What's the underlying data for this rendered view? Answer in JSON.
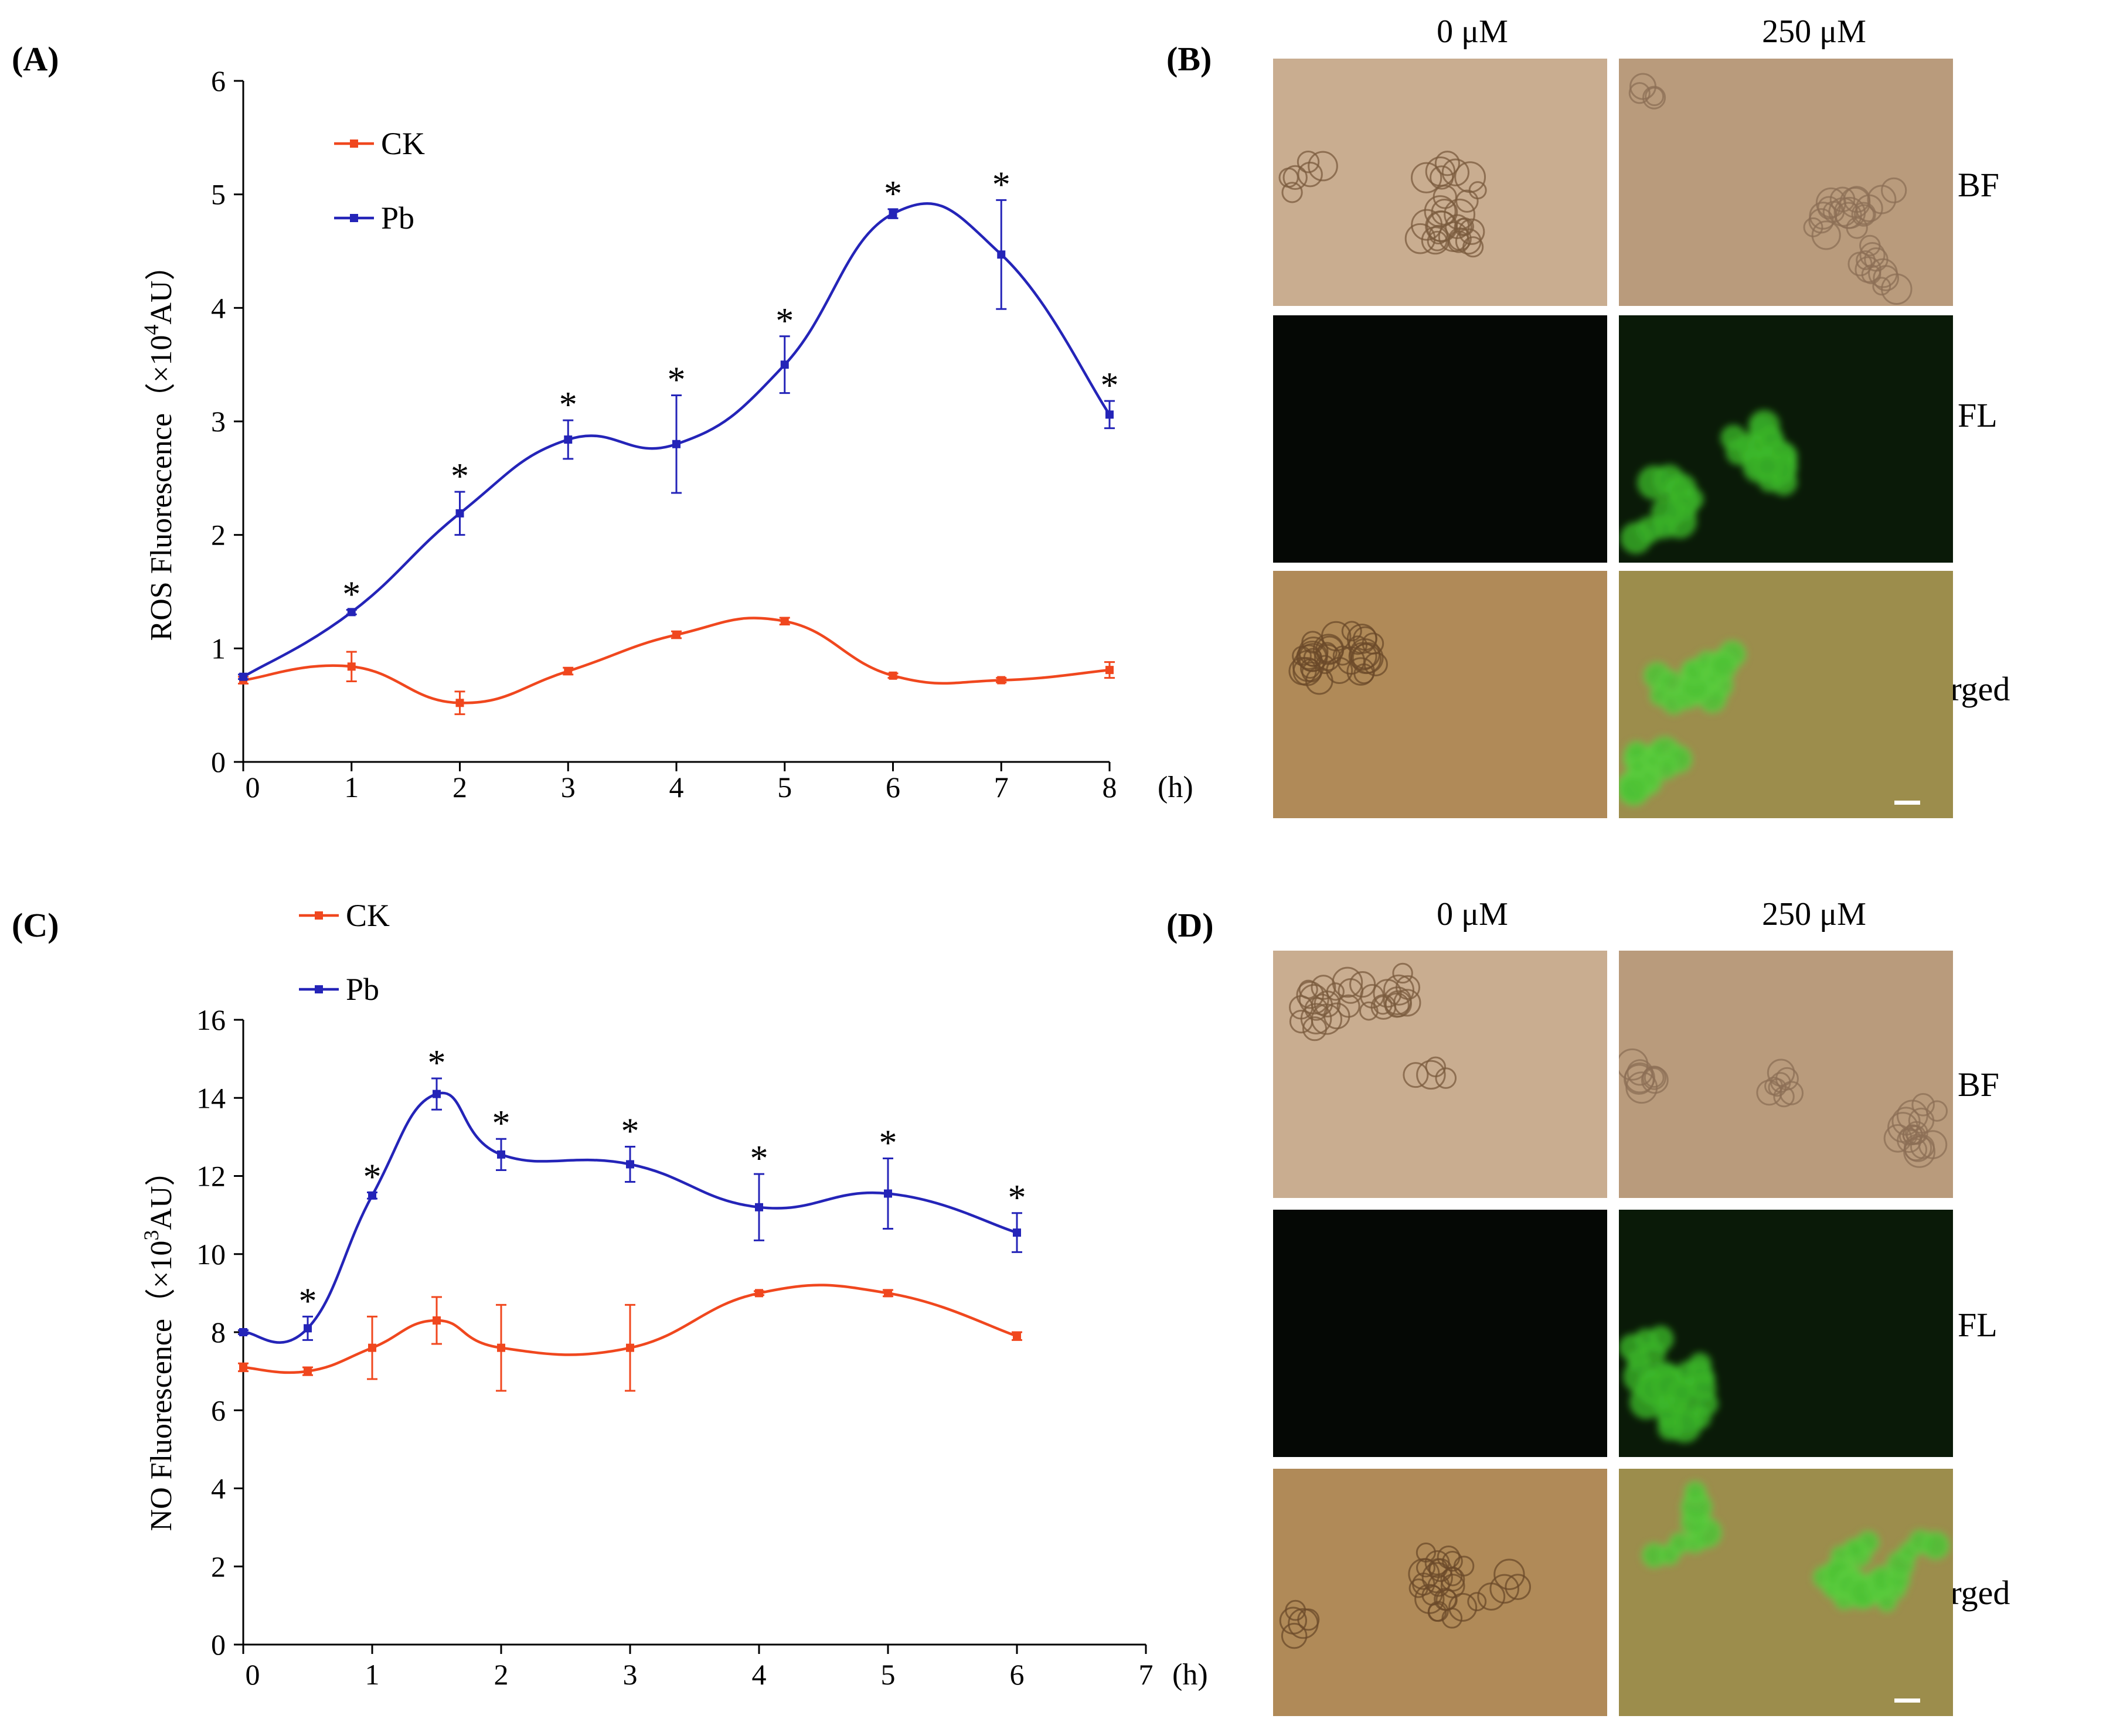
{
  "panels": {
    "A": "(A)",
    "B": "(B)",
    "C": "(C)",
    "D": "(D)"
  },
  "micrographs": {
    "col_labels": [
      "0 μM",
      "250 μM"
    ],
    "row_labels": [
      "BF",
      "FL",
      "Merged"
    ]
  },
  "colors": {
    "ck": "#f0471e",
    "pb": "#2424b8"
  },
  "chart_data": [
    {
      "id": "A",
      "type": "line",
      "ylabel_main": "ROS Fluorescence",
      "ylabel_unit_pre": "（×10",
      "ylabel_unit_exp": "4",
      "ylabel_unit_post": "AU）",
      "xunit": "(h)",
      "xlim": [
        0,
        8
      ],
      "ylim": [
        0,
        6
      ],
      "xticks": [
        "0",
        "1",
        "2",
        "3",
        "4",
        "5",
        "6",
        "7",
        "8"
      ],
      "yticks": [
        "0",
        "1",
        "2",
        "3",
        "4",
        "5",
        "6"
      ],
      "series": [
        {
          "name": "CK",
          "x": [
            0,
            1,
            2,
            3,
            4,
            5,
            6,
            7,
            8
          ],
          "y": [
            0.72,
            0.84,
            0.52,
            0.8,
            1.12,
            1.24,
            0.76,
            0.72,
            0.81
          ],
          "err": [
            0.03,
            0.13,
            0.1,
            0.03,
            0.03,
            0.03,
            0.02,
            0.02,
            0.07
          ]
        },
        {
          "name": "Pb",
          "x": [
            0,
            1,
            2,
            3,
            4,
            5,
            6,
            7,
            8
          ],
          "y": [
            0.75,
            1.32,
            2.19,
            2.84,
            2.8,
            3.5,
            4.83,
            4.47,
            3.06
          ],
          "err": [
            0.02,
            0.02,
            0.19,
            0.17,
            0.43,
            0.25,
            0.04,
            0.48,
            0.12
          ]
        }
      ],
      "significance": [
        {
          "x": 1,
          "y": 1.32,
          "err": 0.02,
          "text": "*"
        },
        {
          "x": 2,
          "y": 2.19,
          "err": 0.19,
          "text": "*"
        },
        {
          "x": 3,
          "y": 2.84,
          "err": 0.17,
          "text": "*"
        },
        {
          "x": 4,
          "y": 2.8,
          "err": 0.43,
          "text": "*"
        },
        {
          "x": 5,
          "y": 3.5,
          "err": 0.25,
          "text": "*"
        },
        {
          "x": 6,
          "y": 4.83,
          "err": 0.04,
          "text": "*"
        },
        {
          "x": 7,
          "y": 4.47,
          "err": 0.48,
          "text": "*"
        },
        {
          "x": 8,
          "y": 3.06,
          "err": 0.12,
          "text": "*"
        }
      ]
    },
    {
      "id": "C",
      "type": "line",
      "ylabel_main": "NO Fluorescence",
      "ylabel_unit_pre": "（×10",
      "ylabel_unit_exp": "3",
      "ylabel_unit_post": "AU）",
      "xunit": "(h)",
      "xlim": [
        0,
        7
      ],
      "ylim": [
        0,
        16
      ],
      "xticks": [
        "0",
        "1",
        "2",
        "3",
        "4",
        "5",
        "6",
        "7"
      ],
      "yticks": [
        "0",
        "2",
        "4",
        "6",
        "8",
        "10",
        "12",
        "14",
        "16"
      ],
      "series": [
        {
          "name": "CK",
          "x": [
            0,
            0.5,
            1,
            1.5,
            2,
            3,
            4,
            5,
            6
          ],
          "y": [
            7.1,
            7.0,
            7.6,
            8.3,
            7.6,
            7.6,
            9.0,
            9.0,
            7.9
          ],
          "err": [
            0.1,
            0.1,
            0.8,
            0.6,
            1.1,
            1.1,
            0.05,
            0.08,
            0.1
          ]
        },
        {
          "name": "Pb",
          "x": [
            0,
            0.5,
            1,
            1.5,
            2,
            3,
            4,
            5,
            6
          ],
          "y": [
            8.0,
            8.1,
            11.5,
            14.1,
            12.55,
            12.3,
            11.2,
            11.55,
            10.55
          ],
          "err": [
            0.05,
            0.3,
            0.08,
            0.4,
            0.4,
            0.45,
            0.85,
            0.9,
            0.5
          ]
        }
      ],
      "significance": [
        {
          "x": 0.5,
          "y": 8.1,
          "err": 0.3,
          "text": "*"
        },
        {
          "x": 1,
          "y": 11.5,
          "err": 0.08,
          "text": "*"
        },
        {
          "x": 1.5,
          "y": 14.1,
          "err": 0.4,
          "text": "*"
        },
        {
          "x": 2,
          "y": 12.55,
          "err": 0.4,
          "text": "*"
        },
        {
          "x": 3,
          "y": 12.3,
          "err": 0.45,
          "text": "*"
        },
        {
          "x": 4,
          "y": 11.2,
          "err": 0.85,
          "text": "*"
        },
        {
          "x": 5,
          "y": 11.55,
          "err": 0.9,
          "text": "*"
        },
        {
          "x": 6,
          "y": 10.55,
          "err": 0.5,
          "text": "*"
        }
      ]
    }
  ]
}
